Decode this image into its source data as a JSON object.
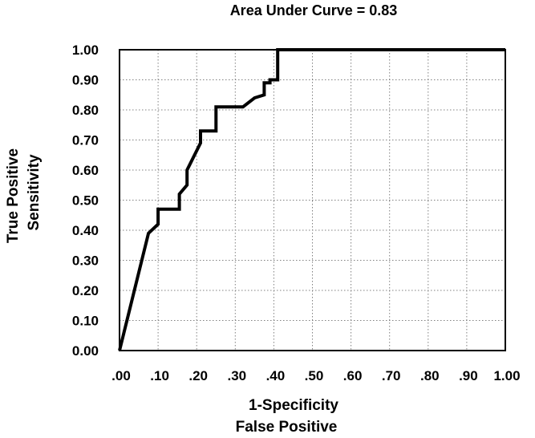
{
  "chart_data": {
    "type": "line",
    "title": "Area Under Curve = 0.83",
    "xlabel": [
      "1-Specificity",
      "False Positive"
    ],
    "ylabel": [
      "True Positive",
      "Sensitivity"
    ],
    "xlim": [
      0,
      1
    ],
    "ylim": [
      0,
      1
    ],
    "x_ticks": [
      ".00",
      ".10",
      ".20",
      ".30",
      ".40",
      ".50",
      ".60",
      ".70",
      ".80",
      ".90",
      "1.00"
    ],
    "y_ticks": [
      "0.00",
      "0.10",
      "0.20",
      "0.30",
      "0.40",
      "0.50",
      "0.60",
      "0.70",
      "0.80",
      "0.90",
      "1.00"
    ],
    "grid": true,
    "colors": {
      "line": "#000000",
      "grid": "#808080",
      "frame": "#000000"
    },
    "series": [
      {
        "x": [
          0.0,
          0.075,
          0.1,
          0.1,
          0.155,
          0.155,
          0.175,
          0.175,
          0.21,
          0.21,
          0.25,
          0.25,
          0.32,
          0.35,
          0.375,
          0.375,
          0.39,
          0.39,
          0.41,
          0.41,
          1.0
        ],
        "y": [
          0.0,
          0.39,
          0.42,
          0.47,
          0.47,
          0.52,
          0.55,
          0.6,
          0.69,
          0.73,
          0.73,
          0.81,
          0.81,
          0.84,
          0.85,
          0.89,
          0.89,
          0.9,
          0.9,
          1.0,
          1.0
        ]
      }
    ]
  }
}
